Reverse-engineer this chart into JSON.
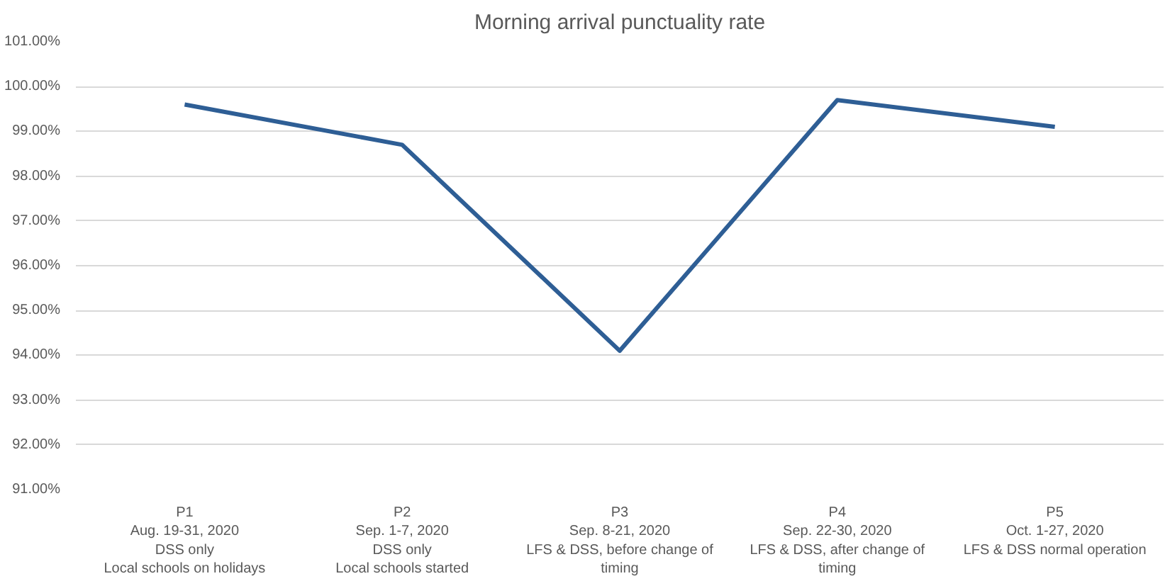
{
  "chart_data": {
    "type": "line",
    "title": "Morning arrival punctuality rate",
    "categories": [
      "P1\nAug. 19-31, 2020\nDSS only\nLocal schools on holidays",
      "P2\nSep. 1-7, 2020\nDSS only\nLocal schools started",
      "P3\nSep. 8-21, 2020\nLFS & DSS, before change of\ntiming",
      "P4\nSep. 22-30, 2020\nLFS & DSS, after change of\ntiming",
      "P5\nOct. 1-27, 2020\nLFS & DSS normal operation"
    ],
    "series": [
      {
        "color": "#2e5e95",
        "values": [
          99.6,
          98.7,
          94.1,
          99.7,
          99.1
        ]
      }
    ],
    "ylim": [
      91,
      101
    ],
    "yticks": [
      {
        "value": 91,
        "label": "91.00%"
      },
      {
        "value": 92,
        "label": "92.00%"
      },
      {
        "value": 93,
        "label": "93.00%"
      },
      {
        "value": 94,
        "label": "94.00%"
      },
      {
        "value": 95,
        "label": "95.00%"
      },
      {
        "value": 96,
        "label": "96.00%"
      },
      {
        "value": 97,
        "label": "97.00%"
      },
      {
        "value": 98,
        "label": "98.00%"
      },
      {
        "value": 99,
        "label": "99.00%"
      },
      {
        "value": 100,
        "label": "100.00%"
      },
      {
        "value": 101,
        "label": "101.00%"
      }
    ],
    "grid": "y",
    "marker": "none",
    "line_style": "solid"
  }
}
